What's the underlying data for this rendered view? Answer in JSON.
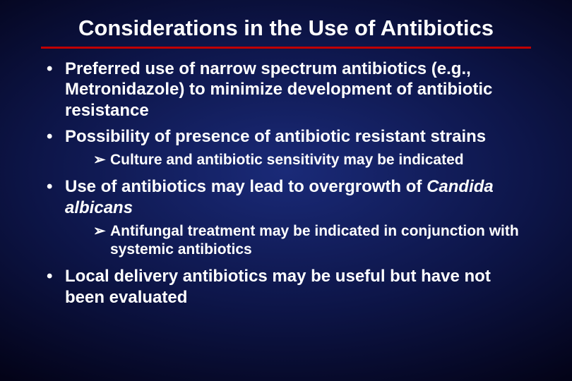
{
  "slide": {
    "title": "Considerations in the Use of Antibiotics",
    "title_fontsize": 31,
    "title_color": "#ffffff",
    "rule_color": "#c00000",
    "body_fontsize": 24,
    "sub_fontsize": 21,
    "text_color": "#ffffff",
    "bg_center": "#1a2a78",
    "bg_edge": "#000000",
    "bullets": [
      {
        "text": "Preferred use of narrow spectrum antibiotics (e.g., Metronidazole) to minimize development of antibiotic resistance",
        "sub": []
      },
      {
        "text": "Possibility of presence of antibiotic resistant strains",
        "sub": [
          {
            "text": "Culture and antibiotic sensitivity may be indicated"
          }
        ]
      },
      {
        "text_pre": "Use of antibiotics may lead to overgrowth of ",
        "text_italic": "Candida albicans",
        "sub": [
          {
            "text": "Antifungal treatment may be indicated in conjunction with systemic antibiotics"
          }
        ]
      },
      {
        "text": "Local delivery antibiotics may be useful but have not been evaluated",
        "sub": []
      }
    ]
  }
}
